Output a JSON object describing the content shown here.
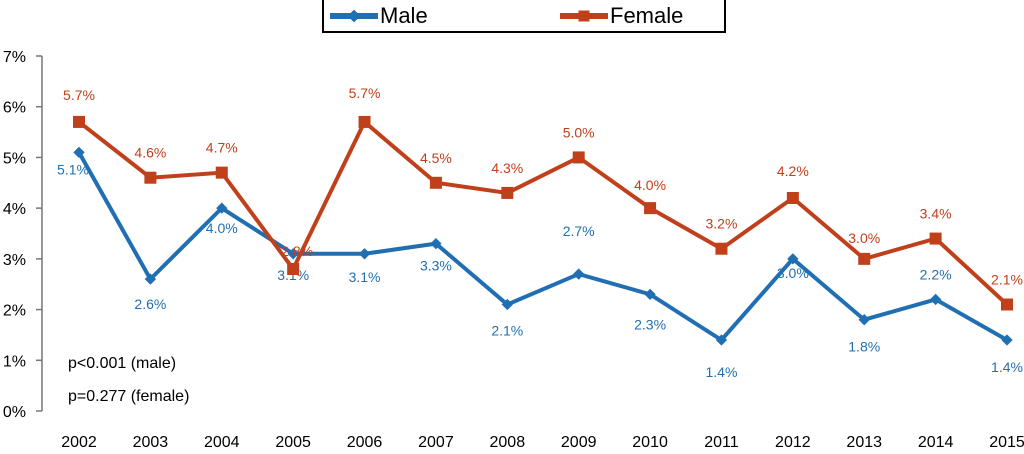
{
  "chart_data": {
    "type": "line",
    "title": "",
    "xlabel": "",
    "ylabel": "",
    "categories": [
      "2002",
      "2003",
      "2004",
      "2005",
      "2006",
      "2007",
      "2008",
      "2009",
      "2010",
      "2011",
      "2012",
      "2013",
      "2014",
      "2015"
    ],
    "ylim": [
      0,
      7
    ],
    "yticks": [
      "0%",
      "1%",
      "2%",
      "3%",
      "4%",
      "5%",
      "6%",
      "7%"
    ],
    "grid": false,
    "legend_position": "top-center",
    "series": [
      {
        "name": "Male",
        "color": "#1f6fb2",
        "marker": "diamond",
        "values": [
          5.1,
          2.6,
          4.0,
          3.1,
          3.1,
          3.3,
          2.1,
          2.7,
          2.3,
          1.4,
          3.0,
          1.8,
          2.2,
          1.4
        ],
        "labels": [
          "5.1%",
          "2.6%",
          "4.0%",
          "3.1%",
          "3.1%",
          "3.3%",
          "2.1%",
          "2.7%",
          "2.3%",
          "1.4%",
          "3.0%",
          "1.8%",
          "2.2%",
          "1.4%"
        ]
      },
      {
        "name": "Female",
        "color": "#c0401c",
        "marker": "square",
        "values": [
          5.7,
          4.6,
          4.7,
          2.8,
          5.7,
          4.5,
          4.3,
          5.0,
          4.0,
          3.2,
          4.2,
          3.0,
          3.4,
          2.1
        ],
        "labels": [
          "5.7%",
          "4.6%",
          "4.7%",
          "2.8%",
          "5.7%",
          "4.5%",
          "4.3%",
          "5.0%",
          "4.0%",
          "3.2%",
          "4.2%",
          "3.0%",
          "3.4%",
          "2.1%"
        ]
      }
    ],
    "annotations": [
      "p<0.001 (male)",
      "p=0.277 (female)"
    ]
  }
}
